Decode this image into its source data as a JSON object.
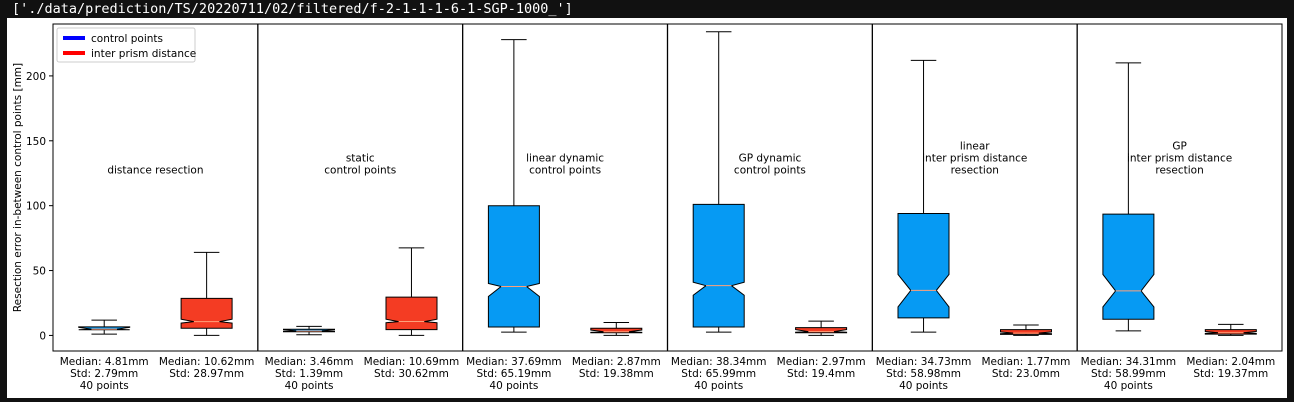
{
  "header": {
    "path_text": "['./data/prediction/TS/20220711/02/filtered/f-2-1-1-1-6-1-SGP-1000_']"
  },
  "chart_data": {
    "type": "box",
    "ylabel": "Resection error in-between control points [mm]",
    "ylim": [
      -12,
      240
    ],
    "yticks": [
      0,
      50,
      100,
      150,
      200
    ],
    "legend": {
      "placement": "top-left",
      "entries": [
        {
          "label": "control points",
          "color": "#0000ff"
        },
        {
          "label": "inter prism distance",
          "color": "#ff0000"
        }
      ]
    },
    "colors": {
      "control_fill": "#069af3",
      "inter_fill": "#f43c23",
      "median": "#ffa07a"
    },
    "panels": [
      {
        "title": [
          "distance resection"
        ],
        "boxes": [
          {
            "series": "control points",
            "min": 1,
            "q1": 4.3,
            "median": 4.81,
            "q3": 6.6,
            "max": 11.8,
            "notch_lo": 4.3,
            "notch_hi": 6.3,
            "label": [
              "Median: 4.81mm",
              "Std: 2.79mm",
              "40 points"
            ]
          },
          {
            "series": "inter prism distance",
            "min": 0,
            "q1": 5.5,
            "median": 10.62,
            "q3": 28.5,
            "max": 64,
            "notch_lo": 9.5,
            "notch_hi": 12.5,
            "label": [
              "Median: 10.62mm",
              "Std: 28.97mm"
            ]
          }
        ]
      },
      {
        "title": [
          "static",
          "control points"
        ],
        "boxes": [
          {
            "series": "control points",
            "min": 0.5,
            "q1": 2.8,
            "median": 3.46,
            "q3": 4.8,
            "max": 7,
            "notch_lo": 3.1,
            "notch_hi": 4.3,
            "label": [
              "Median: 3.46mm",
              "Std: 1.39mm",
              "40 points"
            ]
          },
          {
            "series": "inter prism distance",
            "min": 0,
            "q1": 4.5,
            "median": 10.69,
            "q3": 29.5,
            "max": 67.5,
            "notch_lo": 9.8,
            "notch_hi": 12.5,
            "label": [
              "Median: 10.69mm",
              "Std: 30.62mm"
            ]
          }
        ]
      },
      {
        "title": [
          "linear dynamic",
          "control points"
        ],
        "boxes": [
          {
            "series": "control points",
            "min": 2.5,
            "q1": 6.5,
            "median": 37.69,
            "q3": 100,
            "max": 228,
            "notch_lo": 30,
            "notch_hi": 40,
            "label": [
              "Median: 37.69mm",
              "Std: 65.19mm",
              "40 points"
            ]
          },
          {
            "series": "inter prism distance",
            "min": 0,
            "q1": 2,
            "median": 2.87,
            "q3": 5.5,
            "max": 10,
            "notch_lo": 2.4,
            "notch_hi": 4.2,
            "label": [
              "Median: 2.87mm",
              "Std: 19.38mm"
            ]
          }
        ]
      },
      {
        "title": [
          "GP dynamic",
          "control points"
        ],
        "boxes": [
          {
            "series": "control points",
            "min": 2.5,
            "q1": 6.5,
            "median": 38.34,
            "q3": 101,
            "max": 234,
            "notch_lo": 31,
            "notch_hi": 41,
            "label": [
              "Median: 38.34mm",
              "Std: 65.99mm",
              "40 points"
            ]
          },
          {
            "series": "inter prism distance",
            "min": 0,
            "q1": 2,
            "median": 2.97,
            "q3": 6,
            "max": 11,
            "notch_lo": 2.5,
            "notch_hi": 4.5,
            "label": [
              "Median: 2.97mm",
              "Std: 19.4mm"
            ]
          }
        ]
      },
      {
        "title": [
          "linear",
          "inter prism distance",
          "resection"
        ],
        "boxes": [
          {
            "series": "control points",
            "min": 2.5,
            "q1": 13.5,
            "median": 34.73,
            "q3": 94,
            "max": 212,
            "notch_lo": 22,
            "notch_hi": 47,
            "label": [
              "Median: 34.73mm",
              "Std: 58.98mm",
              "40 points"
            ]
          },
          {
            "series": "inter prism distance",
            "min": 0,
            "q1": 0.8,
            "median": 1.77,
            "q3": 4.5,
            "max": 8,
            "notch_lo": 1.3,
            "notch_hi": 2.7,
            "label": [
              "Median: 1.77mm",
              "Std: 23.0mm"
            ]
          }
        ]
      },
      {
        "title": [
          "GP",
          "inter prism distance",
          "resection"
        ],
        "boxes": [
          {
            "series": "control points",
            "min": 3.5,
            "q1": 12.5,
            "median": 34.31,
            "q3": 93.5,
            "max": 210,
            "notch_lo": 22,
            "notch_hi": 47,
            "label": [
              "Median: 34.31mm",
              "Std: 58.99mm",
              "40 points"
            ]
          },
          {
            "series": "inter prism distance",
            "min": 0,
            "q1": 1,
            "median": 2.04,
            "q3": 4.5,
            "max": 8.5,
            "notch_lo": 1.5,
            "notch_hi": 3,
            "label": [
              "Median: 2.04mm",
              "Std: 19.37mm"
            ]
          }
        ]
      }
    ]
  }
}
